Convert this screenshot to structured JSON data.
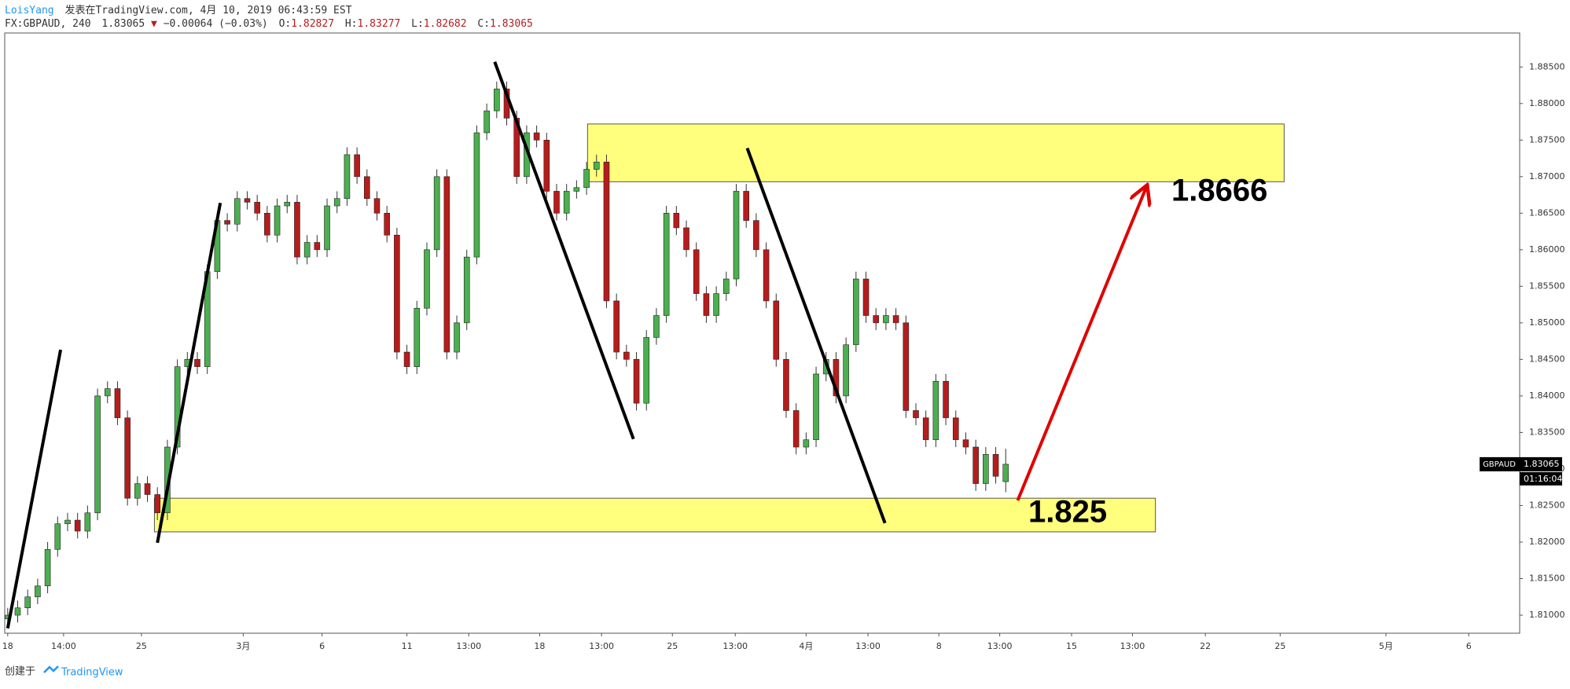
{
  "header": {
    "author": "LoisYang",
    "published": "发表在TradingView.com, 4月 10, 2019 06:43:59 EST",
    "symbol": "FX:GBPAUD, 240",
    "change": "−0.00064 (−0.03%)",
    "o": "O:",
    "h": "H:",
    "l": "L:",
    "c": "C:"
  },
  "footer": {
    "created": "创建于",
    "brand": "TradingView"
  },
  "chart_data": {
    "type": "candlestick",
    "up_color": "#4caf50",
    "down_color": "#b71c1c",
    "grid": false,
    "symbol_tag": "GBPAUD",
    "countdown": "01:16:04",
    "open": [
      1.8095,
      1.81,
      1.811,
      1.8125,
      1.814,
      1.819,
      1.8225,
      1.823,
      1.8215,
      1.824,
      1.84,
      1.841,
      1.837,
      1.826,
      1.828,
      1.8265,
      1.824,
      1.833,
      1.844,
      1.845,
      1.844,
      1.857,
      1.864,
      1.8635,
      1.867,
      1.8665,
      1.865,
      1.862,
      1.866,
      1.8665,
      1.859,
      1.861,
      1.86,
      1.866,
      1.867,
      1.873,
      1.87,
      1.867,
      1.865,
      1.862,
      1.846,
      1.844,
      1.852,
      1.86,
      1.87,
      1.846,
      1.85,
      1.859,
      1.876,
      1.879,
      1.882,
      1.878,
      1.87,
      1.876,
      1.875,
      1.868,
      1.865,
      1.868,
      1.8685,
      1.871,
      1.872,
      1.853,
      1.846,
      1.845,
      1.839,
      1.848,
      1.851,
      1.865,
      1.863,
      1.86,
      1.854,
      1.851,
      1.854,
      1.856,
      1.868,
      1.864,
      1.86,
      1.853,
      1.845,
      1.838,
      1.833,
      1.834,
      1.843,
      1.845,
      1.84,
      1.847,
      1.856,
      1.851,
      1.85,
      1.851,
      1.85,
      1.838,
      1.837,
      1.834,
      1.842,
      1.837,
      1.834,
      1.833,
      1.828,
      1.832,
      1.82827
    ],
    "high": [
      1.811,
      1.812,
      1.8135,
      1.815,
      1.82,
      1.8235,
      1.824,
      1.824,
      1.825,
      1.841,
      1.842,
      1.842,
      1.838,
      1.829,
      1.829,
      1.8275,
      1.834,
      1.845,
      1.846,
      1.846,
      1.858,
      1.865,
      1.865,
      1.868,
      1.868,
      1.8675,
      1.866,
      1.867,
      1.8675,
      1.8675,
      1.862,
      1.862,
      1.867,
      1.868,
      1.874,
      1.874,
      1.871,
      1.868,
      1.866,
      1.863,
      1.847,
      1.853,
      1.861,
      1.871,
      1.871,
      1.851,
      1.86,
      1.877,
      1.88,
      1.883,
      1.883,
      1.879,
      1.877,
      1.877,
      1.876,
      1.869,
      1.869,
      1.8695,
      1.872,
      1.873,
      1.873,
      1.854,
      1.847,
      1.846,
      1.849,
      1.852,
      1.866,
      1.866,
      1.864,
      1.861,
      1.855,
      1.855,
      1.857,
      1.869,
      1.869,
      1.865,
      1.861,
      1.854,
      1.846,
      1.839,
      1.835,
      1.844,
      1.846,
      1.846,
      1.848,
      1.857,
      1.857,
      1.852,
      1.852,
      1.852,
      1.851,
      1.839,
      1.838,
      1.843,
      1.843,
      1.838,
      1.835,
      1.834,
      1.833,
      1.833,
      1.83277
    ],
    "low": [
      1.8085,
      1.809,
      1.81,
      1.8115,
      1.813,
      1.818,
      1.8215,
      1.8205,
      1.8205,
      1.823,
      1.839,
      1.836,
      1.825,
      1.825,
      1.8255,
      1.823,
      1.823,
      1.832,
      1.843,
      1.843,
      1.843,
      1.856,
      1.8625,
      1.8625,
      1.8655,
      1.864,
      1.861,
      1.861,
      1.865,
      1.858,
      1.858,
      1.859,
      1.859,
      1.865,
      1.866,
      1.869,
      1.866,
      1.864,
      1.861,
      1.845,
      1.843,
      1.843,
      1.851,
      1.859,
      1.845,
      1.845,
      1.849,
      1.858,
      1.875,
      1.878,
      1.877,
      1.869,
      1.869,
      1.874,
      1.867,
      1.864,
      1.864,
      1.867,
      1.8675,
      1.87,
      1.852,
      1.845,
      1.844,
      1.838,
      1.838,
      1.847,
      1.85,
      1.862,
      1.859,
      1.853,
      1.85,
      1.85,
      1.853,
      1.855,
      1.863,
      1.859,
      1.852,
      1.844,
      1.837,
      1.832,
      1.832,
      1.833,
      1.842,
      1.839,
      1.839,
      1.846,
      1.85,
      1.849,
      1.849,
      1.849,
      1.837,
      1.836,
      1.833,
      1.833,
      1.836,
      1.833,
      1.832,
      1.827,
      1.827,
      1.828,
      1.82682
    ],
    "close": [
      1.81,
      1.811,
      1.8125,
      1.814,
      1.819,
      1.8225,
      1.823,
      1.8215,
      1.824,
      1.84,
      1.841,
      1.837,
      1.826,
      1.828,
      1.8265,
      1.824,
      1.833,
      1.844,
      1.845,
      1.844,
      1.857,
      1.864,
      1.8635,
      1.867,
      1.8665,
      1.865,
      1.862,
      1.866,
      1.8665,
      1.859,
      1.861,
      1.86,
      1.866,
      1.867,
      1.873,
      1.87,
      1.867,
      1.865,
      1.862,
      1.846,
      1.844,
      1.852,
      1.86,
      1.87,
      1.846,
      1.85,
      1.859,
      1.876,
      1.879,
      1.882,
      1.878,
      1.87,
      1.876,
      1.875,
      1.868,
      1.865,
      1.868,
      1.8685,
      1.871,
      1.872,
      1.853,
      1.846,
      1.845,
      1.839,
      1.848,
      1.851,
      1.865,
      1.863,
      1.86,
      1.854,
      1.851,
      1.854,
      1.856,
      1.868,
      1.864,
      1.86,
      1.853,
      1.845,
      1.838,
      1.833,
      1.834,
      1.843,
      1.845,
      1.84,
      1.847,
      1.856,
      1.851,
      1.85,
      1.851,
      1.85,
      1.838,
      1.837,
      1.834,
      1.842,
      1.837,
      1.834,
      1.833,
      1.828,
      1.832,
      1.829,
      1.83065
    ],
    "xlim": [
      -0.3,
      151.5
    ],
    "xticks": [
      {
        "value": 0,
        "label": "18"
      },
      {
        "value": 5.6,
        "label": "14:00"
      },
      {
        "value": 13.4,
        "label": "25"
      },
      {
        "value": 23.6,
        "label": "3月"
      },
      {
        "value": 31.5,
        "label": "6"
      },
      {
        "value": 40.0,
        "label": "11"
      },
      {
        "value": 46.2,
        "label": "13:00"
      },
      {
        "value": 53.3,
        "label": "18"
      },
      {
        "value": 59.5,
        "label": "13:00"
      },
      {
        "value": 66.6,
        "label": "25"
      },
      {
        "value": 72.9,
        "label": "13:00"
      },
      {
        "value": 80.0,
        "label": "4月"
      },
      {
        "value": 86.2,
        "label": "13:00"
      },
      {
        "value": 93.3,
        "label": "8"
      },
      {
        "value": 99.4,
        "label": "13:00"
      },
      {
        "value": 106.6,
        "label": "15"
      },
      {
        "value": 112.7,
        "label": "13:00"
      },
      {
        "value": 120.0,
        "label": "22"
      },
      {
        "value": 127.5,
        "label": "25"
      },
      {
        "value": 138.1,
        "label": "5月"
      },
      {
        "value": 146.4,
        "label": "6"
      }
    ],
    "ylim": [
      1.80753,
      1.88965
    ],
    "yticks": [
      {
        "value": 1.81,
        "label": "1.81000"
      },
      {
        "value": 1.815,
        "label": "1.81500"
      },
      {
        "value": 1.82,
        "label": "1.82000"
      },
      {
        "value": 1.825,
        "label": "1.82500"
      },
      {
        "value": 1.83,
        "label": "1.83000"
      },
      {
        "value": 1.835,
        "label": "1.83500"
      },
      {
        "value": 1.84,
        "label": "1.84000"
      },
      {
        "value": 1.845,
        "label": "1.84500"
      },
      {
        "value": 1.85,
        "label": "1.85000"
      },
      {
        "value": 1.855,
        "label": "1.85500"
      },
      {
        "value": 1.86,
        "label": "1.86000"
      },
      {
        "value": 1.865,
        "label": "1.86500"
      },
      {
        "value": 1.87,
        "label": "1.87000"
      },
      {
        "value": 1.875,
        "label": "1.87500"
      },
      {
        "value": 1.88,
        "label": "1.88000"
      },
      {
        "value": 1.885,
        "label": "1.88500"
      }
    ],
    "zones": [
      {
        "x": [
          58.1,
          127.9
        ],
        "y": [
          1.8772,
          1.8693
        ],
        "label": "1.8666"
      },
      {
        "x": [
          14.7,
          115.0
        ],
        "y": [
          1.826,
          1.8214
        ],
        "label": "1.825"
      }
    ],
    "zone_color": "#ffff66",
    "trendlines": [
      {
        "x": [
          0,
          5.3
        ],
        "y": [
          1.8082,
          1.8463
        ],
        "color": "#000000"
      },
      {
        "x": [
          15.0,
          21.3
        ],
        "y": [
          1.8199,
          1.8664
        ],
        "color": "#000000"
      },
      {
        "x": [
          48.8,
          62.7
        ],
        "y": [
          1.8857,
          1.8341
        ],
        "color": "#000000"
      },
      {
        "x": [
          74.1,
          87.9
        ],
        "y": [
          1.8739,
          1.8226
        ],
        "color": "#000000"
      }
    ],
    "arrow": {
      "x": [
        101.2,
        114.1
      ],
      "y": [
        1.8257,
        1.8686
      ],
      "color": "#e00000"
    }
  }
}
